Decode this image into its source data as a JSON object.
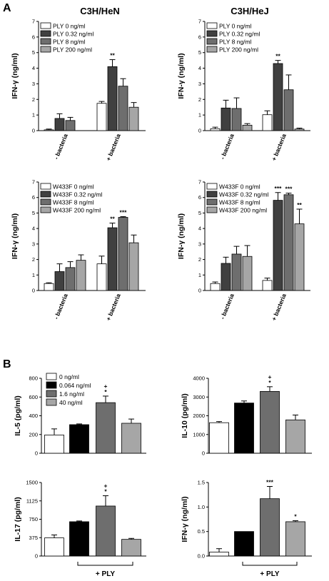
{
  "figure": {
    "panel_letters": [
      "A",
      "B"
    ],
    "column_titles": [
      "C3H/HeN",
      "C3H/HeJ"
    ]
  },
  "colors": {
    "white": "#ffffff",
    "black": "#000000",
    "dark_gray": "#404040",
    "mid_gray": "#6e6e6e",
    "light_gray": "#a6a6a6",
    "axis": "#000000"
  },
  "chart_data": [
    {
      "id": "A-HeN-PLY",
      "type": "bar",
      "title": "C3H/HeN",
      "xlabel": "",
      "ylabel": "IFN-γ (ng/ml)",
      "ylim": [
        0,
        7
      ],
      "yticks": [
        0,
        1,
        2,
        3,
        4,
        5,
        6,
        7
      ],
      "categories": [
        "- bacteria",
        "+ bacteria"
      ],
      "legend_position": "top-left",
      "series": [
        {
          "name": "PLY 0 ng/ml",
          "color": "#ffffff",
          "values": [
            0.05,
            1.75
          ],
          "errors": [
            0.05,
            0.12
          ],
          "labels": [
            "",
            ""
          ]
        },
        {
          "name": "PLY 0.32 ng/ml",
          "color": "#404040",
          "values": [
            0.78,
            4.1
          ],
          "errors": [
            0.3,
            0.45
          ],
          "labels": [
            "",
            "**"
          ]
        },
        {
          "name": "PLY 8 ng/ml",
          "color": "#6e6e6e",
          "values": [
            0.65,
            2.85
          ],
          "errors": [
            0.2,
            0.48
          ],
          "labels": [
            "",
            ""
          ]
        },
        {
          "name": "PLY 200 ng/ml",
          "color": "#a6a6a6",
          "values": [
            0.0,
            1.5
          ],
          "errors": [
            0.0,
            0.3
          ],
          "labels": [
            "",
            ""
          ]
        }
      ]
    },
    {
      "id": "A-HeJ-PLY",
      "type": "bar",
      "title": "C3H/HeJ",
      "xlabel": "",
      "ylabel": "IFN-γ (ng/ml)",
      "ylim": [
        0,
        7
      ],
      "yticks": [
        0,
        1,
        2,
        3,
        4,
        5,
        6,
        7
      ],
      "categories": [
        "- bacteria",
        "+ bacteria"
      ],
      "legend_position": "top-left",
      "series": [
        {
          "name": "PLY 0 ng/ml",
          "color": "#ffffff",
          "values": [
            0.12,
            1.02
          ],
          "errors": [
            0.1,
            0.25
          ],
          "labels": [
            "",
            ""
          ]
        },
        {
          "name": "PLY 0.32 ng/ml",
          "color": "#404040",
          "values": [
            1.45,
            4.3
          ],
          "errors": [
            0.5,
            0.2
          ],
          "labels": [
            "",
            "**"
          ]
        },
        {
          "name": "PLY 8 ng/ml",
          "color": "#6e6e6e",
          "values": [
            1.42,
            2.62
          ],
          "errors": [
            0.68,
            0.95
          ],
          "labels": [
            "",
            ""
          ]
        },
        {
          "name": "PLY 200 ng/ml",
          "color": "#a6a6a6",
          "values": [
            0.35,
            0.1
          ],
          "errors": [
            0.1,
            0.06
          ],
          "labels": [
            "",
            ""
          ]
        }
      ]
    },
    {
      "id": "A-HeN-W433F",
      "type": "bar",
      "title": "",
      "xlabel": "",
      "ylabel": "IFN-γ (ng/ml)",
      "ylim": [
        0,
        7
      ],
      "yticks": [
        0,
        1,
        2,
        3,
        4,
        5,
        6,
        7
      ],
      "categories": [
        "- bacteria",
        "+ bacteria"
      ],
      "legend_position": "top-left",
      "series": [
        {
          "name": "W433F 0 ng/ml",
          "color": "#ffffff",
          "values": [
            0.45,
            1.72
          ],
          "errors": [
            0.05,
            0.5
          ],
          "labels": [
            "",
            ""
          ]
        },
        {
          "name": "W433F 0.32 ng/ml",
          "color": "#404040",
          "values": [
            1.22,
            4.05
          ],
          "errors": [
            0.5,
            0.3
          ],
          "labels": [
            "",
            "**"
          ]
        },
        {
          "name": "W433F 8 ng/ml",
          "color": "#6e6e6e",
          "values": [
            1.48,
            4.72
          ],
          "errors": [
            0.38,
            0.05
          ],
          "labels": [
            "",
            "***"
          ]
        },
        {
          "name": "W433F 200 ng/ml",
          "color": "#a6a6a6",
          "values": [
            1.95,
            3.08
          ],
          "errors": [
            0.35,
            0.5
          ],
          "labels": [
            "",
            ""
          ]
        }
      ]
    },
    {
      "id": "A-HeJ-W433F",
      "type": "bar",
      "title": "",
      "xlabel": "",
      "ylabel": "IFN-γ (ng/ml)",
      "ylim": [
        0,
        7
      ],
      "yticks": [
        0,
        1,
        2,
        3,
        4,
        5,
        6,
        7
      ],
      "categories": [
        "- bacteria",
        "+ bacteria"
      ],
      "legend_position": "top-left",
      "series": [
        {
          "name": "W433F 0 ng/ml",
          "color": "#ffffff",
          "values": [
            0.45,
            0.65
          ],
          "errors": [
            0.1,
            0.15
          ],
          "labels": [
            "",
            ""
          ]
        },
        {
          "name": "W433F 0.32 ng/ml",
          "color": "#404040",
          "values": [
            1.75,
            5.82
          ],
          "errors": [
            0.4,
            0.5
          ],
          "labels": [
            "",
            "***"
          ]
        },
        {
          "name": "W433F 8 ng/ml",
          "color": "#6e6e6e",
          "values": [
            2.35,
            6.18
          ],
          "errors": [
            0.5,
            0.1
          ],
          "labels": [
            "",
            "***"
          ]
        },
        {
          "name": "W433F 200 ng/ml",
          "color": "#a6a6a6",
          "values": [
            2.2,
            4.3
          ],
          "errors": [
            0.7,
            0.95
          ],
          "labels": [
            "",
            "**"
          ]
        }
      ]
    },
    {
      "id": "B-IL5",
      "type": "bar",
      "title": "",
      "xlabel": "",
      "ylabel": "IL-5 (pg/ml)",
      "ylim": [
        0,
        800
      ],
      "yticks": [
        0,
        200,
        400,
        600,
        800
      ],
      "categories": [
        "0 ng/ml",
        "0.064 ng/ml",
        "1.6 ng/ml",
        "40 ng/ml"
      ],
      "colors": [
        "#ffffff",
        "#000000",
        "#6e6e6e",
        "#a6a6a6"
      ],
      "values": [
        195,
        305,
        540,
        320
      ],
      "errors": [
        65,
        8,
        70,
        45
      ],
      "labels": [
        "",
        "",
        "+\n*",
        ""
      ],
      "legend_position": "top-left",
      "legend": [
        "0 ng/ml",
        "0.064 ng/ml",
        "1.6 ng/ml",
        "40 ng/ml"
      ],
      "bracket_label": ""
    },
    {
      "id": "B-IL10",
      "type": "bar",
      "title": "",
      "xlabel": "",
      "ylabel": "IL-10 (pg/ml)",
      "ylim": [
        0,
        4000
      ],
      "yticks": [
        0,
        1000,
        2000,
        3000,
        4000
      ],
      "categories": [
        "0 ng/ml",
        "0.064 ng/ml",
        "1.6 ng/ml",
        "40 ng/ml"
      ],
      "colors": [
        "#ffffff",
        "#000000",
        "#6e6e6e",
        "#a6a6a6"
      ],
      "values": [
        1630,
        2680,
        3300,
        1780
      ],
      "errors": [
        60,
        110,
        250,
        260
      ],
      "labels": [
        "",
        "",
        "+\n*",
        ""
      ],
      "legend": [],
      "bracket_label": ""
    },
    {
      "id": "B-IL17",
      "type": "bar",
      "title": "",
      "xlabel": "",
      "ylabel": "IL-17 (pg/ml)",
      "ylim": [
        0,
        1500
      ],
      "yticks": [
        0,
        375,
        750,
        1125,
        1500
      ],
      "categories": [
        "0 ng/ml",
        "0.064 ng/ml",
        "1.6 ng/ml",
        "40 ng/ml"
      ],
      "colors": [
        "#ffffff",
        "#000000",
        "#6e6e6e",
        "#a6a6a6"
      ],
      "values": [
        370,
        700,
        1020,
        340
      ],
      "errors": [
        60,
        15,
        210,
        20
      ],
      "labels": [
        "",
        "",
        "+\n*",
        ""
      ],
      "legend": [],
      "bracket_label": "+ PLY"
    },
    {
      "id": "B-IFNg",
      "type": "bar",
      "title": "",
      "xlabel": "",
      "ylabel": "IFN-γ (ng/ml)",
      "ylim": [
        0,
        1.5
      ],
      "yticks": [
        0.0,
        0.5,
        1.0,
        1.5
      ],
      "categories": [
        "0 ng/ml",
        "0.064 ng/ml",
        "1.6 ng/ml",
        "40 ng/ml"
      ],
      "colors": [
        "#ffffff",
        "#000000",
        "#6e6e6e",
        "#a6a6a6"
      ],
      "values": [
        0.08,
        0.5,
        1.17,
        0.7
      ],
      "errors": [
        0.07,
        0.0,
        0.25,
        0.02
      ],
      "labels": [
        "",
        "",
        "***",
        "*"
      ],
      "legend": [],
      "bracket_label": "+ PLY"
    }
  ]
}
